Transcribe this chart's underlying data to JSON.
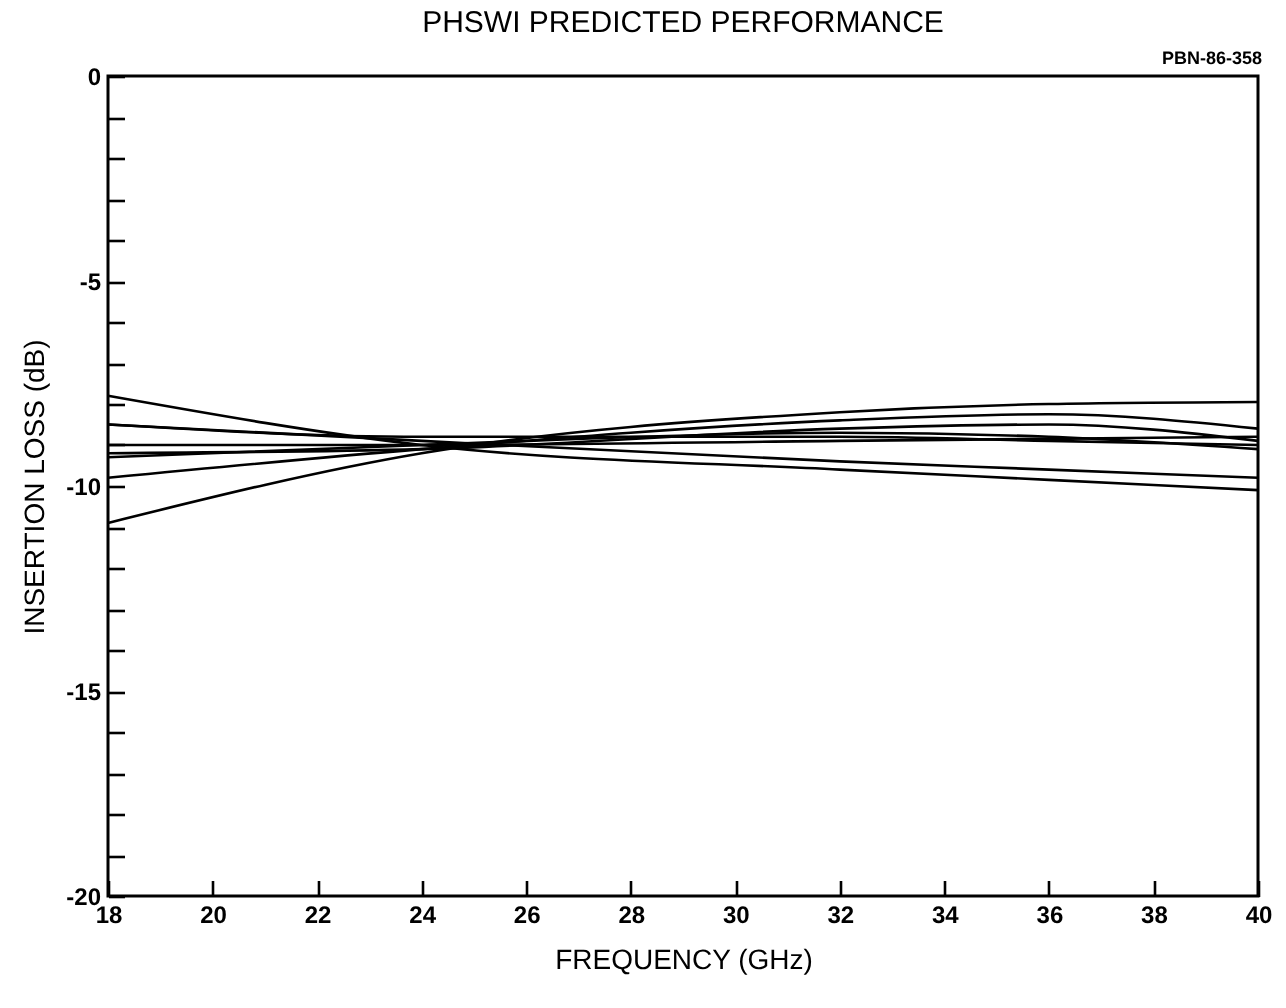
{
  "chart_data": {
    "type": "line",
    "title": "PHSWI PREDICTED PERFORMANCE",
    "xlabel": "FREQUENCY (GHz)",
    "ylabel": "INSERTION LOSS (dB)",
    "annotations": [
      "PBN-86-358"
    ],
    "x": [
      18,
      24,
      32,
      36,
      40
    ],
    "series": [
      {
        "color": "#000000",
        "values": [
          -7.8,
          -9.0,
          -9.6,
          -9.85,
          -10.1
        ]
      },
      {
        "color": "#000000",
        "values": [
          -8.5,
          -8.9,
          -9.4,
          -9.6,
          -9.8
        ]
      },
      {
        "color": "#000000",
        "values": [
          -8.5,
          -8.8,
          -8.8,
          -8.9,
          -9.0
        ]
      },
      {
        "color": "#000000",
        "values": [
          -9.0,
          -9.0,
          -8.9,
          -8.85,
          -8.8
        ]
      },
      {
        "color": "#000000",
        "values": [
          -9.2,
          -9.1,
          -8.6,
          -8.5,
          -8.9
        ]
      },
      {
        "color": "#000000",
        "values": [
          -9.3,
          -9.0,
          -8.7,
          -8.8,
          -9.1
        ]
      },
      {
        "color": "#000000",
        "values": [
          -9.8,
          -9.1,
          -8.4,
          -8.25,
          -8.6
        ]
      },
      {
        "color": "#000000",
        "values": [
          -10.9,
          -9.2,
          -8.2,
          -8.0,
          -7.95
        ]
      }
    ],
    "xlim": [
      18,
      40
    ],
    "xticks": [
      18,
      20,
      22,
      24,
      26,
      28,
      30,
      32,
      34,
      36,
      38,
      40
    ],
    "ylim": [
      -20,
      0
    ],
    "yticks": [
      0,
      {
        "value": -1,
        "label": null
      },
      {
        "value": -2,
        "label": null
      },
      {
        "value": -3,
        "label": null
      },
      {
        "value": -4,
        "label": null
      },
      -5,
      {
        "value": -6,
        "label": null
      },
      {
        "value": -7,
        "label": null
      },
      {
        "value": -8,
        "label": null
      },
      {
        "value": -9,
        "label": null
      },
      -10,
      {
        "value": -11,
        "label": null
      },
      {
        "value": -12,
        "label": null
      },
      {
        "value": -13,
        "label": null
      },
      {
        "value": -14,
        "label": null
      },
      -15,
      {
        "value": -16,
        "label": null
      },
      {
        "value": -17,
        "label": null
      },
      {
        "value": -18,
        "label": null
      },
      {
        "value": -19,
        "label": null
      },
      -20
    ],
    "grid": false,
    "legend": false,
    "marker": "none",
    "line_style": "solid"
  }
}
